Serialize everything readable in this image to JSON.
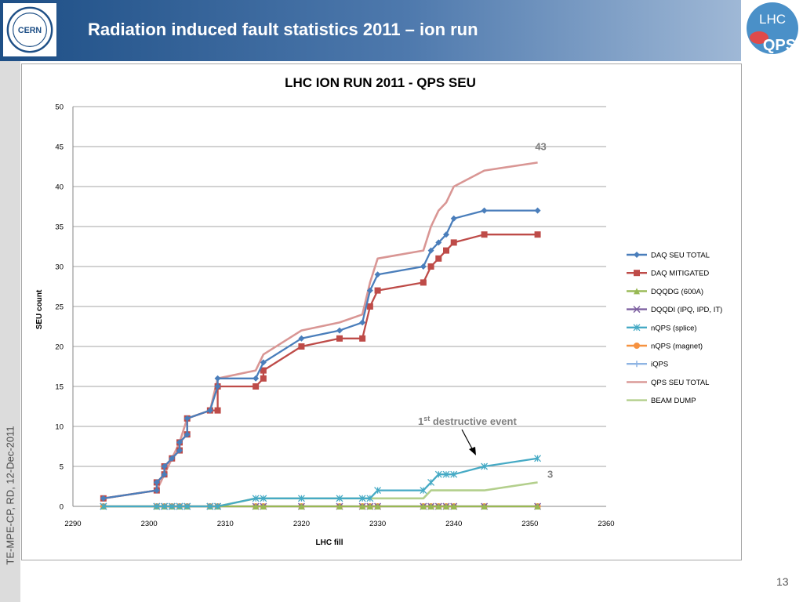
{
  "slide": {
    "title": "Radiation induced fault statistics 2011 – ion run",
    "logo_left_text": "CERN",
    "logo_right_line1": "LHC",
    "logo_right_line2": "QPS",
    "side_label": "TE-MPE-CP, RD, 12-Dec-2011",
    "page_number": "13",
    "colors": {
      "banner": "#2a5a92",
      "accent": "#4a7ebb"
    }
  },
  "chart_data": {
    "type": "line",
    "title": "LHC ION RUN 2011 - QPS SEU",
    "xlabel": "LHC fill",
    "ylabel": "SEU count",
    "xlim": [
      2290,
      2360
    ],
    "ylim": [
      0,
      50
    ],
    "xticks": [
      2290,
      2300,
      2310,
      2320,
      2330,
      2340,
      2350,
      2360
    ],
    "yticks": [
      0,
      5,
      10,
      15,
      20,
      25,
      30,
      35,
      40,
      45,
      50
    ],
    "grid": "horizontal",
    "legend_position": "right",
    "series": [
      {
        "name": "DAQ SEU TOTAL",
        "color": "#4a7ebb",
        "marker": "diamond",
        "x": [
          2294,
          2301,
          2301,
          2302,
          2302,
          2303,
          2304,
          2304,
          2305,
          2305,
          2308,
          2309,
          2309,
          2314,
          2315,
          2320,
          2325,
          2328,
          2329,
          2330,
          2336,
          2337,
          2338,
          2339,
          2340,
          2344,
          2351
        ],
        "y": [
          1,
          2,
          3,
          4,
          5,
          6,
          7,
          8,
          9,
          11,
          12,
          15,
          16,
          16,
          18,
          21,
          22,
          23,
          27,
          29,
          30,
          32,
          33,
          34,
          36,
          37,
          37
        ]
      },
      {
        "name": "DAQ MITIGATED",
        "color": "#be4b48",
        "marker": "square",
        "x": [
          2294,
          2301,
          2301,
          2302,
          2302,
          2303,
          2304,
          2304,
          2305,
          2305,
          2308,
          2309,
          2309,
          2314,
          2315,
          2315,
          2320,
          2325,
          2328,
          2329,
          2330,
          2336,
          2337,
          2338,
          2339,
          2340,
          2344,
          2351
        ],
        "y": [
          1,
          2,
          3,
          4,
          5,
          6,
          7,
          8,
          9,
          11,
          12,
          12,
          15,
          15,
          16,
          17,
          20,
          21,
          21,
          25,
          27,
          28,
          30,
          31,
          32,
          33,
          34,
          34
        ]
      },
      {
        "name": "DQQDG (600A)",
        "color": "#98b954",
        "marker": "triangle",
        "x": [
          2294,
          2301,
          2302,
          2303,
          2304,
          2305,
          2308,
          2309,
          2314,
          2315,
          2320,
          2325,
          2328,
          2329,
          2330,
          2336,
          2337,
          2338,
          2339,
          2340,
          2344,
          2351
        ],
        "y": [
          0,
          0,
          0,
          0,
          0,
          0,
          0,
          0,
          0,
          0,
          0,
          0,
          0,
          0,
          0,
          0,
          0,
          0,
          0,
          0,
          0,
          0
        ]
      },
      {
        "name": "DQQDI (IPQ, IPD, IT)",
        "color": "#7d60a0",
        "marker": "x",
        "x": [
          2294,
          2301,
          2302,
          2303,
          2304,
          2305,
          2308,
          2309,
          2314,
          2315,
          2320,
          2325,
          2328,
          2329,
          2330,
          2336,
          2337,
          2338,
          2339,
          2340,
          2344,
          2351
        ],
        "y": [
          0,
          0,
          0,
          0,
          0,
          0,
          0,
          0,
          0,
          0,
          0,
          0,
          0,
          0,
          0,
          0,
          0,
          0,
          0,
          0,
          0,
          0
        ]
      },
      {
        "name": "nQPS (splice)",
        "color": "#46aac5",
        "marker": "asterisk",
        "x": [
          2294,
          2301,
          2302,
          2303,
          2304,
          2305,
          2308,
          2309,
          2314,
          2315,
          2320,
          2325,
          2328,
          2329,
          2330,
          2336,
          2337,
          2338,
          2339,
          2340,
          2344,
          2351
        ],
        "y": [
          0,
          0,
          0,
          0,
          0,
          0,
          0,
          0,
          1,
          1,
          1,
          1,
          1,
          1,
          2,
          2,
          3,
          4,
          4,
          4,
          5,
          6
        ]
      },
      {
        "name": "nQPS (magnet)",
        "color": "#f69240",
        "marker": "circle",
        "x": [
          2294,
          2301,
          2302,
          2303,
          2304,
          2305,
          2308,
          2309,
          2314,
          2315,
          2320,
          2325,
          2328,
          2329,
          2330,
          2336,
          2337,
          2338,
          2339,
          2340,
          2344,
          2351
        ],
        "y": [
          0,
          0,
          0,
          0,
          0,
          0,
          0,
          0,
          0,
          0,
          0,
          0,
          0,
          0,
          0,
          0,
          0,
          0,
          0,
          0,
          0,
          0
        ]
      },
      {
        "name": "iQPS",
        "color": "#8eb4e3",
        "marker": "plus",
        "x": [
          2294,
          2301,
          2302,
          2303,
          2304,
          2305,
          2308,
          2309,
          2314,
          2315,
          2320,
          2325,
          2328,
          2329,
          2330,
          2336,
          2337,
          2338,
          2339,
          2340,
          2344,
          2351
        ],
        "y": [
          0,
          0,
          0,
          0,
          0,
          0,
          0,
          0,
          0,
          0,
          0,
          0,
          0,
          0,
          0,
          0,
          0,
          0,
          0,
          0,
          0,
          0
        ]
      },
      {
        "name": "QPS SEU TOTAL",
        "color": "#d99694",
        "marker": "none",
        "x": [
          2294,
          2301,
          2302,
          2303,
          2304,
          2305,
          2308,
          2309,
          2314,
          2315,
          2320,
          2325,
          2328,
          2329,
          2330,
          2336,
          2337,
          2338,
          2339,
          2340,
          2344,
          2351
        ],
        "y": [
          1,
          2,
          4,
          6,
          8,
          11,
          12,
          16,
          17,
          19,
          22,
          23,
          24,
          28,
          31,
          32,
          35,
          37,
          38,
          40,
          42,
          43
        ]
      },
      {
        "name": "BEAM DUMP",
        "color": "#b3cf8c",
        "marker": "none",
        "x": [
          2294,
          2301,
          2302,
          2303,
          2304,
          2305,
          2308,
          2309,
          2314,
          2315,
          2320,
          2325,
          2328,
          2329,
          2330,
          2336,
          2337,
          2344,
          2351
        ],
        "y": [
          0,
          0,
          0,
          0,
          0,
          0,
          0,
          0,
          1,
          1,
          1,
          1,
          1,
          1,
          1,
          1,
          2,
          2,
          3
        ]
      }
    ],
    "annotations": [
      {
        "text": "43",
        "x": 2351,
        "y": 43
      },
      {
        "text": "3",
        "x": 2351,
        "y": 3
      },
      {
        "text_main": "1",
        "text_sup": "st",
        "text_rest": " destructive event",
        "x": 2343,
        "y": 5
      }
    ]
  }
}
